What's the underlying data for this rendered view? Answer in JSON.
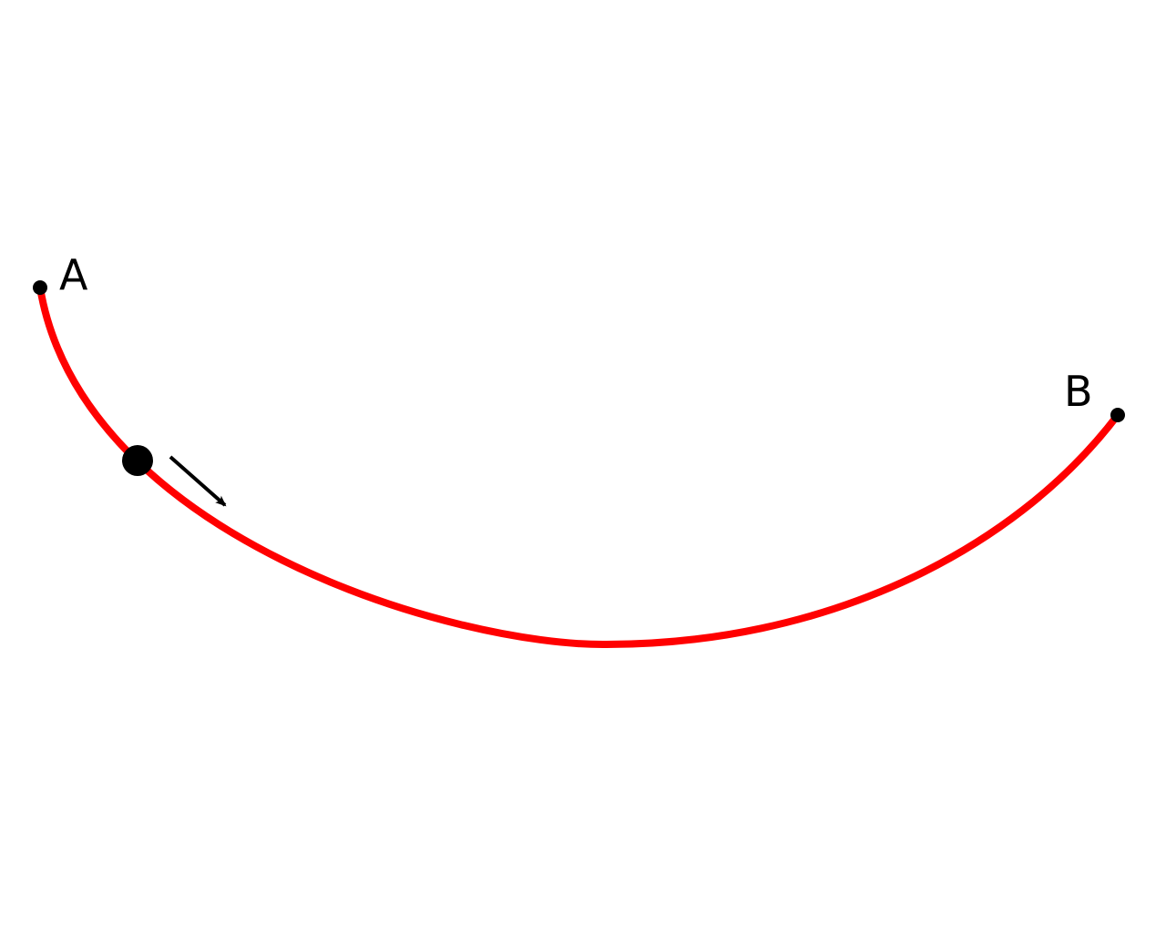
{
  "diagram": {
    "curve_color": "#ff0000",
    "ink_color": "#000000",
    "start_point": {
      "label": "A"
    },
    "end_point": {
      "label": "B"
    },
    "moving_body": {
      "icon": "ball-icon"
    },
    "motion_arrow": {
      "icon": "arrow-down-right-icon"
    }
  }
}
